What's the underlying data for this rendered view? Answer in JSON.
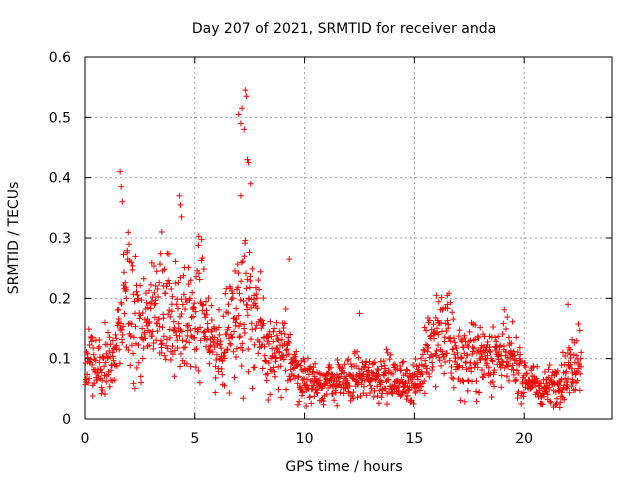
{
  "chart_data": {
    "type": "scatter",
    "title": "Day 207 of 2021, SRMTID for receiver anda",
    "xlabel": "GPS time / hours",
    "ylabel": "SRMTID / TECUs",
    "xlim": [
      0,
      24
    ],
    "ylim": [
      0,
      0.6
    ],
    "xticks": [
      0,
      5,
      10,
      15,
      20
    ],
    "yticks": [
      0,
      0.1,
      0.2,
      0.3,
      0.4,
      0.5,
      0.6
    ],
    "xtick_labels": [
      "0",
      "5",
      "10",
      "15",
      "20"
    ],
    "ytick_labels": [
      "0",
      "0.1",
      "0.2",
      "0.3",
      "0.4",
      "0.5",
      "0.6"
    ],
    "grid": true,
    "marker": "+",
    "color": "#ff0000",
    "x_range_data": [
      0,
      22.6
    ],
    "trend": [
      [
        0.0,
        0.1
      ],
      [
        0.5,
        0.09
      ],
      [
        1.0,
        0.09
      ],
      [
        1.5,
        0.11
      ],
      [
        1.8,
        0.19
      ],
      [
        2.2,
        0.17
      ],
      [
        2.8,
        0.16
      ],
      [
        3.3,
        0.18
      ],
      [
        3.8,
        0.17
      ],
      [
        4.3,
        0.18
      ],
      [
        4.8,
        0.16
      ],
      [
        5.3,
        0.21
      ],
      [
        5.7,
        0.12
      ],
      [
        6.2,
        0.11
      ],
      [
        6.8,
        0.18
      ],
      [
        7.3,
        0.21
      ],
      [
        7.8,
        0.16
      ],
      [
        8.3,
        0.11
      ],
      [
        8.8,
        0.1
      ],
      [
        9.3,
        0.11
      ],
      [
        9.8,
        0.07
      ],
      [
        10.5,
        0.06
      ],
      [
        11.5,
        0.06
      ],
      [
        12.5,
        0.07
      ],
      [
        13.5,
        0.07
      ],
      [
        14.5,
        0.06
      ],
      [
        15.2,
        0.07
      ],
      [
        15.8,
        0.12
      ],
      [
        16.3,
        0.14
      ],
      [
        17.0,
        0.1
      ],
      [
        17.8,
        0.1
      ],
      [
        18.5,
        0.11
      ],
      [
        19.3,
        0.1
      ],
      [
        20.0,
        0.07
      ],
      [
        20.8,
        0.05
      ],
      [
        21.5,
        0.06
      ],
      [
        22.0,
        0.08
      ],
      [
        22.6,
        0.11
      ]
    ],
    "outliers": [
      [
        1.6,
        0.41
      ],
      [
        1.65,
        0.385
      ],
      [
        1.7,
        0.36
      ],
      [
        3.5,
        0.31
      ],
      [
        4.3,
        0.37
      ],
      [
        4.35,
        0.355
      ],
      [
        4.4,
        0.335
      ],
      [
        7.0,
        0.505
      ],
      [
        7.1,
        0.49
      ],
      [
        7.15,
        0.515
      ],
      [
        7.25,
        0.48
      ],
      [
        7.3,
        0.545
      ],
      [
        7.35,
        0.535
      ],
      [
        7.4,
        0.43
      ],
      [
        7.45,
        0.425
      ],
      [
        7.55,
        0.39
      ],
      [
        7.1,
        0.37
      ],
      [
        9.3,
        0.265
      ],
      [
        12.5,
        0.175
      ],
      [
        16.0,
        0.205
      ],
      [
        16.5,
        0.205
      ],
      [
        22.0,
        0.19
      ]
    ]
  }
}
